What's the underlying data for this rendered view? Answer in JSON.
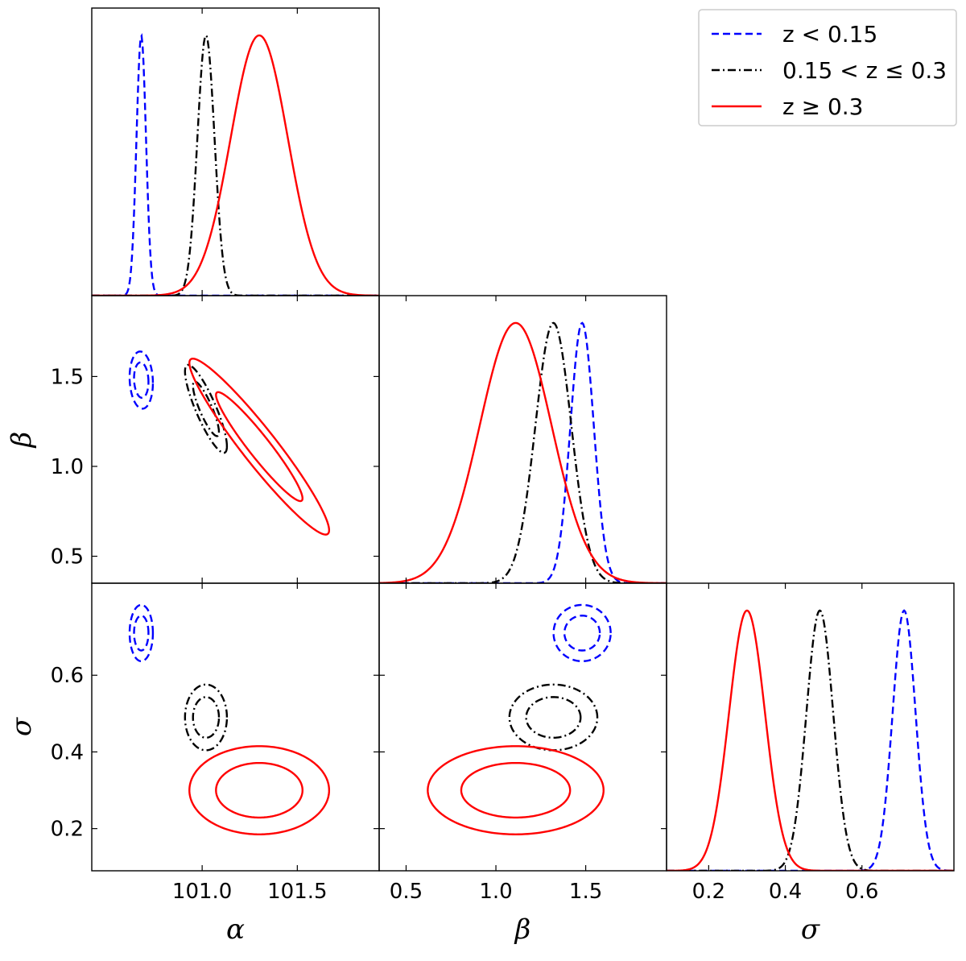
{
  "chart_data": {
    "type": "line",
    "parameters": [
      {
        "key": "alpha",
        "label": "α",
        "range": [
          100.42,
          101.93
        ],
        "ticks": [
          {
            "v": 101.0,
            "t": "101.0"
          },
          {
            "v": 101.5,
            "t": "101.5"
          }
        ]
      },
      {
        "key": "beta",
        "label": "β",
        "range": [
          0.35,
          1.95
        ],
        "ticks": [
          {
            "v": 0.5,
            "t": "0.5"
          },
          {
            "v": 1.0,
            "t": "1.0"
          },
          {
            "v": 1.5,
            "t": "1.5"
          }
        ]
      },
      {
        "key": "sigma",
        "label": "σ",
        "range": [
          0.09,
          0.84
        ],
        "ticks": [
          {
            "v": 0.2,
            "t": "0.2"
          },
          {
            "v": 0.4,
            "t": "0.4"
          },
          {
            "v": 0.6,
            "t": "0.6"
          }
        ]
      }
    ],
    "series": [
      {
        "name": "z < 0.15",
        "color": "#0000ff",
        "dash": "dashed",
        "mean": {
          "alpha": 100.68,
          "beta": 1.48,
          "sigma": 0.71
        },
        "std": {
          "alpha": 0.025,
          "beta": 0.065,
          "sigma": 0.03
        },
        "corr": {
          "alpha_beta": -0.1,
          "alpha_sigma": 0.0,
          "beta_sigma": 0.0
        }
      },
      {
        "name": "0.15 < z ≤ 0.3",
        "color": "#000000",
        "dash": "dashdot",
        "mean": {
          "alpha": 101.02,
          "beta": 1.32,
          "sigma": 0.49
        },
        "std": {
          "alpha": 0.045,
          "beta": 0.1,
          "sigma": 0.035
        },
        "corr": {
          "alpha_beta": -0.85,
          "alpha_sigma": 0.0,
          "beta_sigma": 0.0
        }
      },
      {
        "name": "z ≥ 0.3",
        "color": "#ff0000",
        "dash": "solid",
        "mean": {
          "alpha": 101.3,
          "beta": 1.11,
          "sigma": 0.3
        },
        "std": {
          "alpha": 0.15,
          "beta": 0.2,
          "sigma": 0.047
        },
        "corr": {
          "alpha_beta": -0.95,
          "alpha_sigma": 0.0,
          "beta_sigma": 0.0
        }
      }
    ],
    "legend": {
      "placement": "top-right",
      "labels": [
        "z < 0.15",
        "0.15 < z ≤ 0.3",
        "z ≥ 0.3"
      ]
    },
    "contour_levels": [
      "68%",
      "95%"
    ],
    "grid": false
  }
}
